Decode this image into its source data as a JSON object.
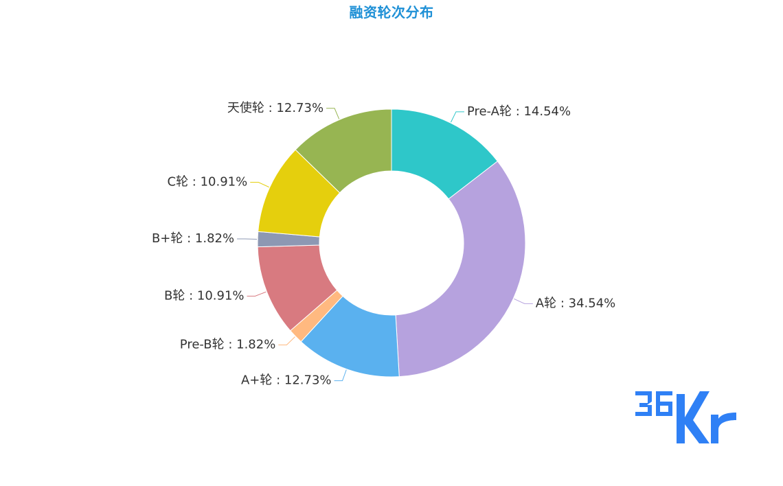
{
  "chart_data": {
    "type": "pie",
    "title": "融资轮次分布",
    "label_format": "{name} : {value}%",
    "series": [
      {
        "name": "Pre-A轮",
        "value": 14.54,
        "color": "#2ec7c9"
      },
      {
        "name": "A轮",
        "value": 34.54,
        "color": "#b6a2de"
      },
      {
        "name": "A+轮",
        "value": 12.73,
        "color": "#5ab1ef"
      },
      {
        "name": "Pre-B轮",
        "value": 1.82,
        "color": "#ffb980"
      },
      {
        "name": "B轮",
        "value": 10.91,
        "color": "#d87a80"
      },
      {
        "name": "B+轮",
        "value": 1.82,
        "color": "#8d98b3"
      },
      {
        "name": "C轮",
        "value": 10.91,
        "color": "#e5cf0d"
      },
      {
        "name": "天使轮",
        "value": 12.73,
        "color": "#97b552"
      }
    ]
  },
  "logo": {
    "text": "36Kr",
    "color": "#2f80f5"
  }
}
